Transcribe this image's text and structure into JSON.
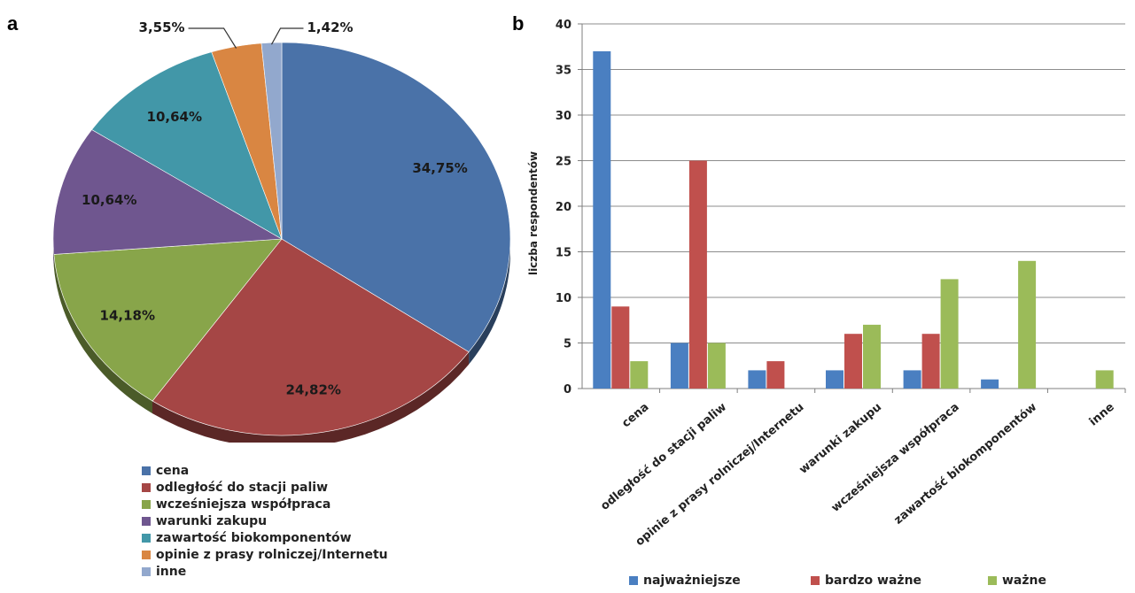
{
  "panels": {
    "left": "a",
    "right": "b"
  },
  "chart_data": [
    {
      "type": "pie",
      "slices": [
        {
          "label": "cena",
          "value": 34.75,
          "display": "34,75%",
          "color": "#4a72a8"
        },
        {
          "label": "odległość do stacji paliw",
          "value": 24.82,
          "display": "24,82%",
          "color": "#a54645"
        },
        {
          "label": "wcześniejsza współpraca",
          "value": 14.18,
          "display": "14,18%",
          "color": "#88a54a"
        },
        {
          "label": "warunki zakupu",
          "value": 10.64,
          "display": "10,64%",
          "color": "#6f568f"
        },
        {
          "label": "zawartość biokomponentów",
          "value": 10.64,
          "display": "10,64%",
          "color": "#4297a8"
        },
        {
          "label": "opinie z prasy rolniczej/Internetu",
          "value": 3.55,
          "display": "3,55%",
          "color": "#d98642"
        },
        {
          "label": "inne",
          "value": 1.42,
          "display": "1,42%",
          "color": "#92a8cd"
        }
      ],
      "legend_position": "bottom"
    },
    {
      "type": "bar",
      "categories": [
        "cena",
        "odległość do stacji paliw",
        "opinie z prasy rolniczej/Internetu",
        "warunki zakupu",
        "wcześniejsza współpraca",
        "zawartość biokomponentów",
        "inne"
      ],
      "series": [
        {
          "name": "najważniejsze",
          "color": "#4a7fc1",
          "values": [
            37,
            5,
            2,
            2,
            2,
            1,
            0
          ]
        },
        {
          "name": "bardzo ważne",
          "color": "#c0504d",
          "values": [
            9,
            25,
            3,
            6,
            6,
            0,
            0
          ]
        },
        {
          "name": "ważne",
          "color": "#9bbb59",
          "values": [
            3,
            5,
            0,
            7,
            12,
            14,
            2
          ]
        }
      ],
      "ylabel": "liczba respondentów",
      "ylim": [
        0,
        40
      ],
      "yticks": [
        0,
        5,
        10,
        15,
        20,
        25,
        30,
        35,
        40
      ],
      "grid": true,
      "legend_position": "bottom"
    }
  ]
}
